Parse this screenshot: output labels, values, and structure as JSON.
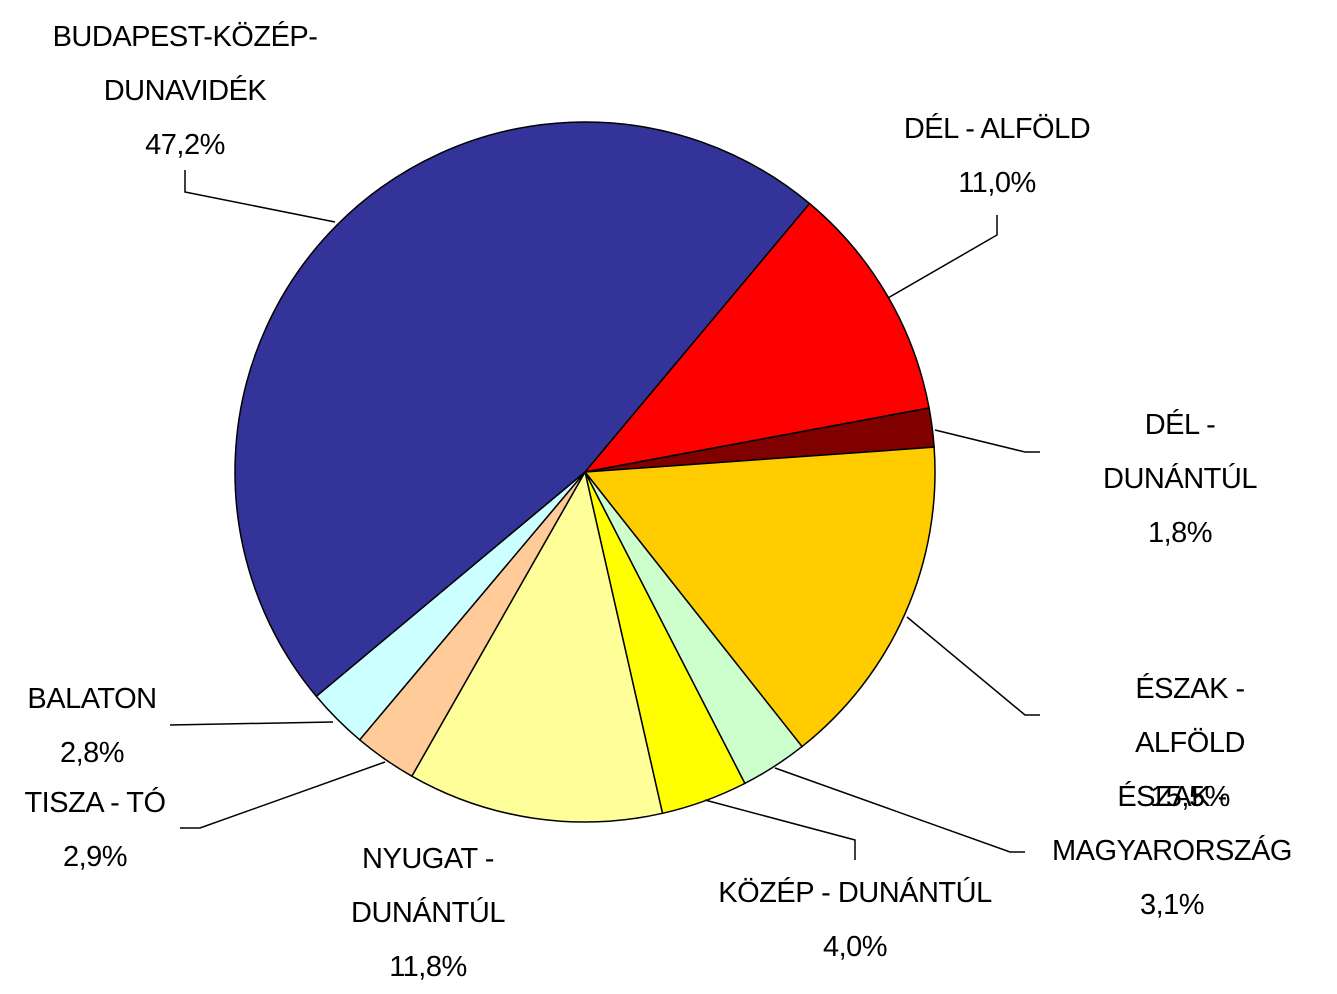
{
  "chart_data": {
    "type": "pie",
    "categories": [
      "DÉL - ALFÖLD",
      "DÉL - DUNÁNTÚL",
      "ÉSZAK - ALFÖLD",
      "ÉSZAK -\nMAGYARORSZÁG",
      "KÖZÉP - DUNÁNTÚL",
      "NYUGAT -\nDUNÁNTÚL",
      "TISZA - TÓ",
      "BALATON",
      "BUDAPEST-KÖZÉP-\nDUNAVIDÉK"
    ],
    "values": [
      11.0,
      1.8,
      15.5,
      3.1,
      4.0,
      11.8,
      2.9,
      2.8,
      47.2
    ],
    "value_labels": [
      "11,0%",
      "1,8%",
      "15,5%",
      "3,1%",
      "4,0%",
      "11,8%",
      "2,9%",
      "2,8%",
      "47,2%"
    ],
    "colors": [
      "#ff0000",
      "#800000",
      "#ffcc00",
      "#ccffcc",
      "#ffff00",
      "#ffff99",
      "#ffcc99",
      "#ccffff",
      "#333399"
    ]
  }
}
